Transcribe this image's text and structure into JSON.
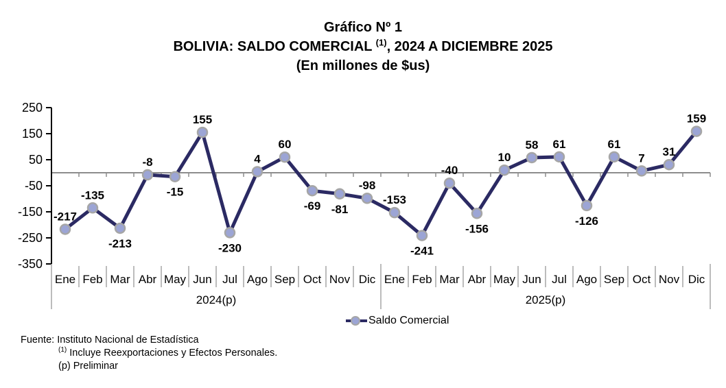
{
  "title": {
    "line1": "Gráfico Nº 1",
    "line2_prefix": "BOLIVIA: SALDO COMERCIAL ",
    "line2_sup": "(1)",
    "line2_suffix": ", 2024 A DICIEMBRE 2025",
    "line3": "(En millones de $us)"
  },
  "chart_data": {
    "type": "line",
    "title": "BOLIVIA: SALDO COMERCIAL (1), 2024 A DICIEMBRE 2025 (En millones de $us)",
    "categories": [
      "Ene",
      "Feb",
      "Mar",
      "Abr",
      "May",
      "Jun",
      "Jul",
      "Ago",
      "Sep",
      "Oct",
      "Nov",
      "Dic",
      "Ene",
      "Feb",
      "Mar",
      "Abr",
      "May",
      "Jun",
      "Jul",
      "Ago",
      "Sep",
      "Oct",
      "Nov",
      "Dic"
    ],
    "groups": [
      {
        "label": "2024(p)",
        "span": 12
      },
      {
        "label": "2025(p)",
        "span": 12
      }
    ],
    "series": [
      {
        "name": "Saldo Comercial",
        "values": [
          -217,
          -135,
          -213,
          -8,
          -15,
          155,
          -230,
          4,
          60,
          -69,
          -81,
          -98,
          -153,
          -241,
          -40,
          -156,
          10,
          58,
          61,
          -126,
          61,
          7,
          31,
          159
        ]
      }
    ],
    "yticks": [
      250,
      150,
      50,
      -50,
      -150,
      -250,
      -350
    ],
    "ylim": [
      -350,
      250
    ],
    "xlabel": "",
    "ylabel": "",
    "grid": false,
    "zero_axis": true,
    "data_labels": true,
    "legend_position": "bottom-center",
    "label_positions": [
      "above",
      "above",
      "below",
      "above",
      "below",
      "above",
      "below",
      "above",
      "above",
      "below",
      "below",
      "above",
      "above",
      "below",
      "above",
      "below",
      "above",
      "above",
      "above",
      "below",
      "above",
      "above",
      "above",
      "above"
    ],
    "colors": {
      "line": "#2B2A63",
      "marker_fill": "#9CA5D5",
      "marker_stroke": "#A6A6A6",
      "zero_line": "#8C8C8C",
      "axis": "#000000",
      "separator": "#A6A6A6",
      "label_text": "#000000"
    }
  },
  "legend": {
    "label": "Saldo Comercial"
  },
  "footer": {
    "line1": "Fuente: Instituto Nacional de Estadística",
    "note1_sup": "(1)",
    "note1_text": " Incluye Reexportaciones y Efectos Personales.",
    "note2": "(p) Preliminar"
  }
}
